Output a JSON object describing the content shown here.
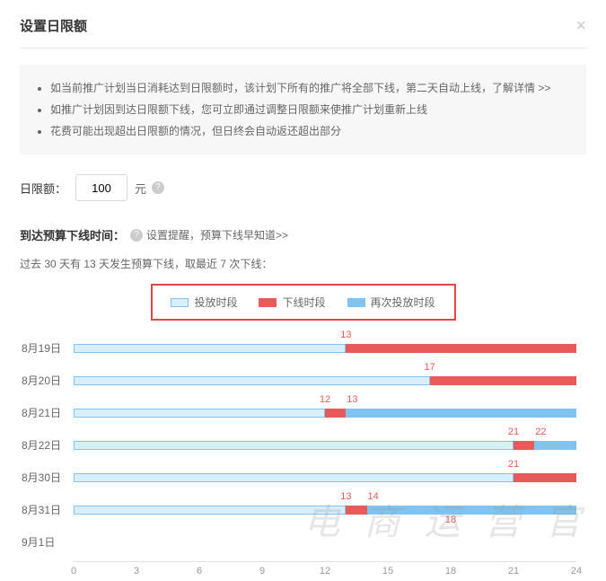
{
  "dialog": {
    "title": "设置日限额",
    "close_glyph": "×"
  },
  "info": {
    "items": [
      "如当前推广计划当日消耗达到日限额时，该计划下所有的推广将全部下线，第二天自动上线，",
      "如推广计划因到达日限额下线，您可立即通过调整日限额来使推广计划重新上线",
      "花费可能出现超出日限额的情况，但日终会自动返还超出部分"
    ],
    "detail_link": "了解详情 >>"
  },
  "quota": {
    "label": "日限额：",
    "value": "100",
    "unit": "元",
    "help_glyph": "?"
  },
  "offline_time": {
    "label": "到达预算下线时间：",
    "tip_text": "设置提醒，预算下线早知道>>",
    "help_glyph": "?"
  },
  "summary": "过去 30 天有 13 天发生预算下线，取最近 7 次下线：",
  "legend": {
    "items": [
      {
        "label": "投放时段",
        "fill": "#d9eefb",
        "border": "#7fc3ee"
      },
      {
        "label": "下线时段",
        "fill": "#e85a5a",
        "border": "#e85a5a"
      },
      {
        "label": "再次投放时段",
        "fill": "#7fc3ee",
        "border": "#7fc3ee"
      }
    ],
    "box_border_color": "#e64545"
  },
  "chart": {
    "xmax": 24,
    "xticks": [
      0,
      3,
      6,
      9,
      12,
      15,
      18,
      21,
      24
    ],
    "rows": [
      {
        "label": "8月19日",
        "segments": [
          {
            "type": "deliver",
            "from": 0,
            "to": 13
          },
          {
            "type": "offline",
            "from": 13,
            "to": 24
          }
        ],
        "markers": [
          {
            "at": 13,
            "text": "13"
          }
        ]
      },
      {
        "label": "8月20日",
        "segments": [
          {
            "type": "deliver",
            "from": 0,
            "to": 17
          },
          {
            "type": "offline",
            "from": 17,
            "to": 24
          }
        ],
        "markers": [
          {
            "at": 17,
            "text": "17"
          }
        ]
      },
      {
        "label": "8月21日",
        "segments": [
          {
            "type": "deliver",
            "from": 0,
            "to": 12
          },
          {
            "type": "offline",
            "from": 12,
            "to": 13
          },
          {
            "type": "redeliver",
            "from": 13,
            "to": 24
          }
        ],
        "markers": [
          {
            "at": 12,
            "text": "12"
          },
          {
            "at": 13.3,
            "text": "13"
          }
        ]
      },
      {
        "label": "8月22日",
        "segments": [
          {
            "type": "deliver",
            "from": 0,
            "to": 21
          },
          {
            "type": "offline",
            "from": 21,
            "to": 22
          },
          {
            "type": "redeliver",
            "from": 22,
            "to": 24
          }
        ],
        "markers": [
          {
            "at": 21,
            "text": "21"
          },
          {
            "at": 22.3,
            "text": "22"
          }
        ]
      },
      {
        "label": "8月30日",
        "segments": [
          {
            "type": "deliver",
            "from": 0,
            "to": 21
          },
          {
            "type": "offline",
            "from": 21,
            "to": 24
          }
        ],
        "markers": [
          {
            "at": 21,
            "text": "21"
          }
        ]
      },
      {
        "label": "8月31日",
        "segments": [
          {
            "type": "deliver",
            "from": 0,
            "to": 13
          },
          {
            "type": "offline",
            "from": 13,
            "to": 14
          },
          {
            "type": "redeliver",
            "from": 14,
            "to": 24
          }
        ],
        "markers": [
          {
            "at": 13,
            "text": "13"
          },
          {
            "at": 14.3,
            "text": "14"
          }
        ]
      },
      {
        "label": "9月1日",
        "segments": [],
        "markers": [
          {
            "at": 18,
            "text": "18",
            "offset_y": -12
          }
        ]
      }
    ]
  },
  "watermark": "电 商 运 营 官"
}
